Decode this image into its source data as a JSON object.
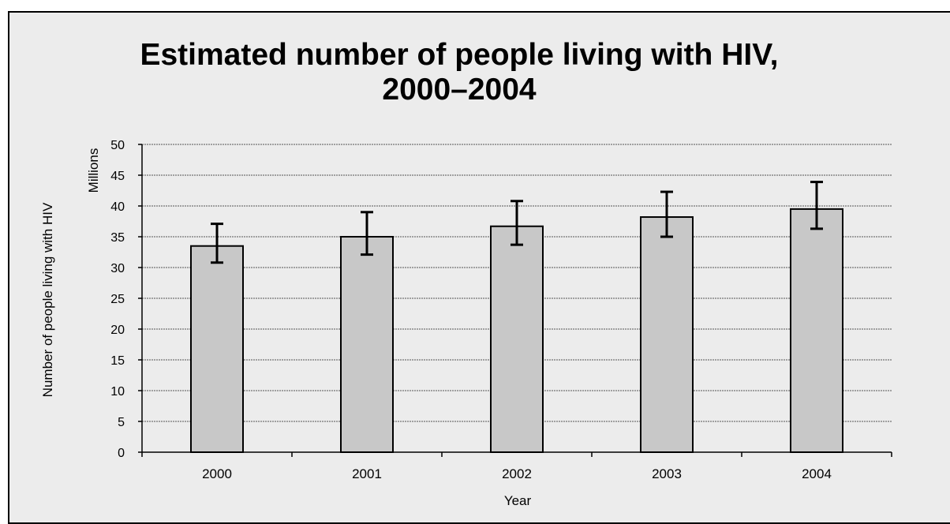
{
  "chart_data": {
    "type": "bar",
    "title_lines": [
      "Estimated number of people living with HIV,",
      "2000–2004"
    ],
    "xlabel": "Year",
    "ylabel": "Number of people living with HIV",
    "yunit": "Millions",
    "categories": [
      "2000",
      "2001",
      "2002",
      "2003",
      "2004"
    ],
    "values": [
      33.5,
      35.0,
      36.7,
      38.2,
      39.5
    ],
    "error_low": [
      30.8,
      32.1,
      33.7,
      35.0,
      36.3
    ],
    "error_high": [
      37.1,
      39.0,
      40.8,
      42.3,
      43.9
    ],
    "ylim": [
      0,
      50
    ],
    "yticks": [
      0,
      5,
      10,
      15,
      20,
      25,
      30,
      35,
      40,
      45,
      50
    ],
    "grid": true,
    "colors": {
      "bar_fill": "#c8c8c8",
      "bar_stroke": "#000000",
      "background": "#ececec",
      "grid": "#555555"
    }
  }
}
